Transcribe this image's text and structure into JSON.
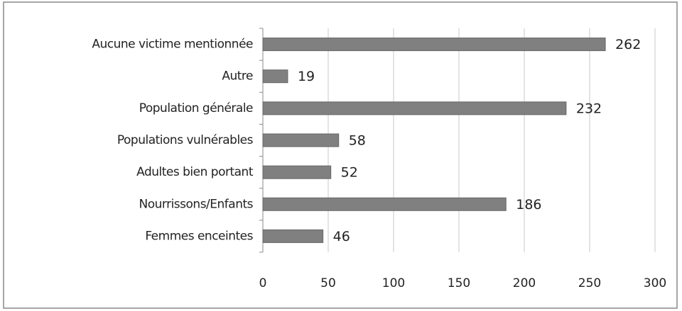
{
  "chart_data": {
    "type": "bar",
    "orientation": "horizontal",
    "categories": [
      "Aucune victime mentionnée",
      "Autre",
      "Population générale",
      "Populations vulnérables",
      "Adultes bien portant",
      "Nourrissons/Enfants",
      "Femmes enceintes"
    ],
    "values": [
      262,
      19,
      232,
      58,
      52,
      186,
      46
    ],
    "color": "#808080",
    "xlim": [
      0,
      300
    ],
    "xticks": [
      0,
      50,
      100,
      150,
      200,
      250,
      300
    ],
    "grid": true
  }
}
